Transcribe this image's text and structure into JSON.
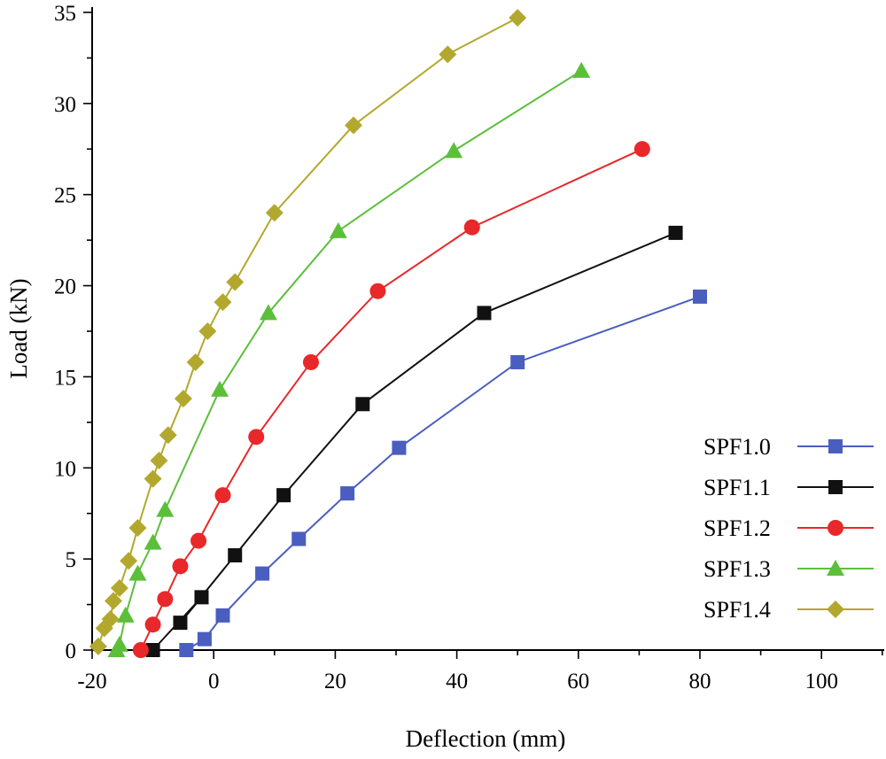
{
  "chart_data": {
    "type": "line",
    "title": "",
    "xlabel": "Deflection (mm)",
    "ylabel": "Load (kN)",
    "xlim": [
      -20,
      110
    ],
    "ylim": [
      0,
      35
    ],
    "xticks": [
      -20,
      0,
      20,
      40,
      60,
      80,
      100
    ],
    "yticks": [
      0,
      5,
      10,
      15,
      20,
      25,
      30,
      35
    ],
    "legend_position": "bottom-right",
    "series": [
      {
        "name": "SPF1.0",
        "color": "#4a5ec0",
        "marker": "square",
        "x": [
          -4.5,
          -1.5,
          1.5,
          8,
          14,
          22,
          30.5,
          50,
          80
        ],
        "y": [
          0,
          0.6,
          1.9,
          4.2,
          6.1,
          8.6,
          11.1,
          15.8,
          19.4
        ]
      },
      {
        "name": "SPF1.1",
        "color": "#111111",
        "marker": "square",
        "x": [
          -10,
          -2,
          -5.5,
          3.5,
          11.5,
          24.5,
          44.5,
          76
        ],
        "y": [
          0,
          2.9,
          1.5,
          5.2,
          8.5,
          13.5,
          18.5,
          22.9
        ]
      },
      {
        "name": "SPF1.2",
        "color": "#e8282a",
        "marker": "circle",
        "x": [
          -12,
          -10,
          -8,
          -5.5,
          -2.5,
          1.5,
          7,
          16,
          27,
          42.5,
          70.5
        ],
        "y": [
          0,
          1.4,
          2.8,
          4.6,
          6,
          8.5,
          11.7,
          15.8,
          19.7,
          23.2,
          27.5
        ]
      },
      {
        "name": "SPF1.3",
        "color": "#5cbf3a",
        "marker": "triangle",
        "x": [
          -16,
          -15.5,
          -14.5,
          -12.5,
          -10,
          -8,
          1,
          9,
          20.5,
          39.5,
          60.5
        ],
        "y": [
          0,
          0.3,
          1.9,
          4.2,
          5.9,
          7.7,
          14.3,
          18.5,
          23,
          27.4,
          31.8
        ]
      },
      {
        "name": "SPF1.4",
        "color": "#b3a82e",
        "marker": "diamond",
        "x": [
          -19,
          -18,
          -17,
          -16.5,
          -15.5,
          -14,
          -12.5,
          -10,
          -9,
          -7.5,
          -5,
          -3,
          -1,
          1.5,
          3.5,
          10,
          23,
          38.5,
          50
        ],
        "y": [
          0.2,
          1.2,
          1.7,
          2.7,
          3.4,
          4.9,
          6.7,
          9.4,
          10.4,
          11.8,
          13.8,
          15.8,
          17.5,
          19.1,
          20.2,
          24,
          28.8,
          32.7,
          34.7
        ]
      }
    ]
  }
}
